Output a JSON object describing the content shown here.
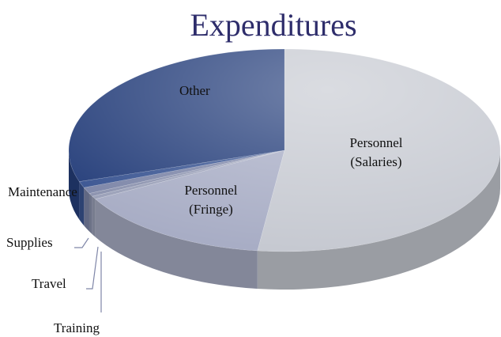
{
  "chart_data": {
    "type": "pie3d",
    "title": "Expenditures",
    "categories": [
      "Personnel (Salaries)",
      "Personnel (Fringe)",
      "Training",
      "Travel",
      "Supplies",
      "Maintenance",
      "Other"
    ],
    "values": [
      52,
      15,
      0.5,
      0.5,
      1,
      1,
      30
    ],
    "colors": [
      "#c6c9d1",
      "#a8adc5",
      "#9aa0b8",
      "#8b92ae",
      "#7d86a8",
      "#3a5592",
      "#263f7b"
    ]
  }
}
